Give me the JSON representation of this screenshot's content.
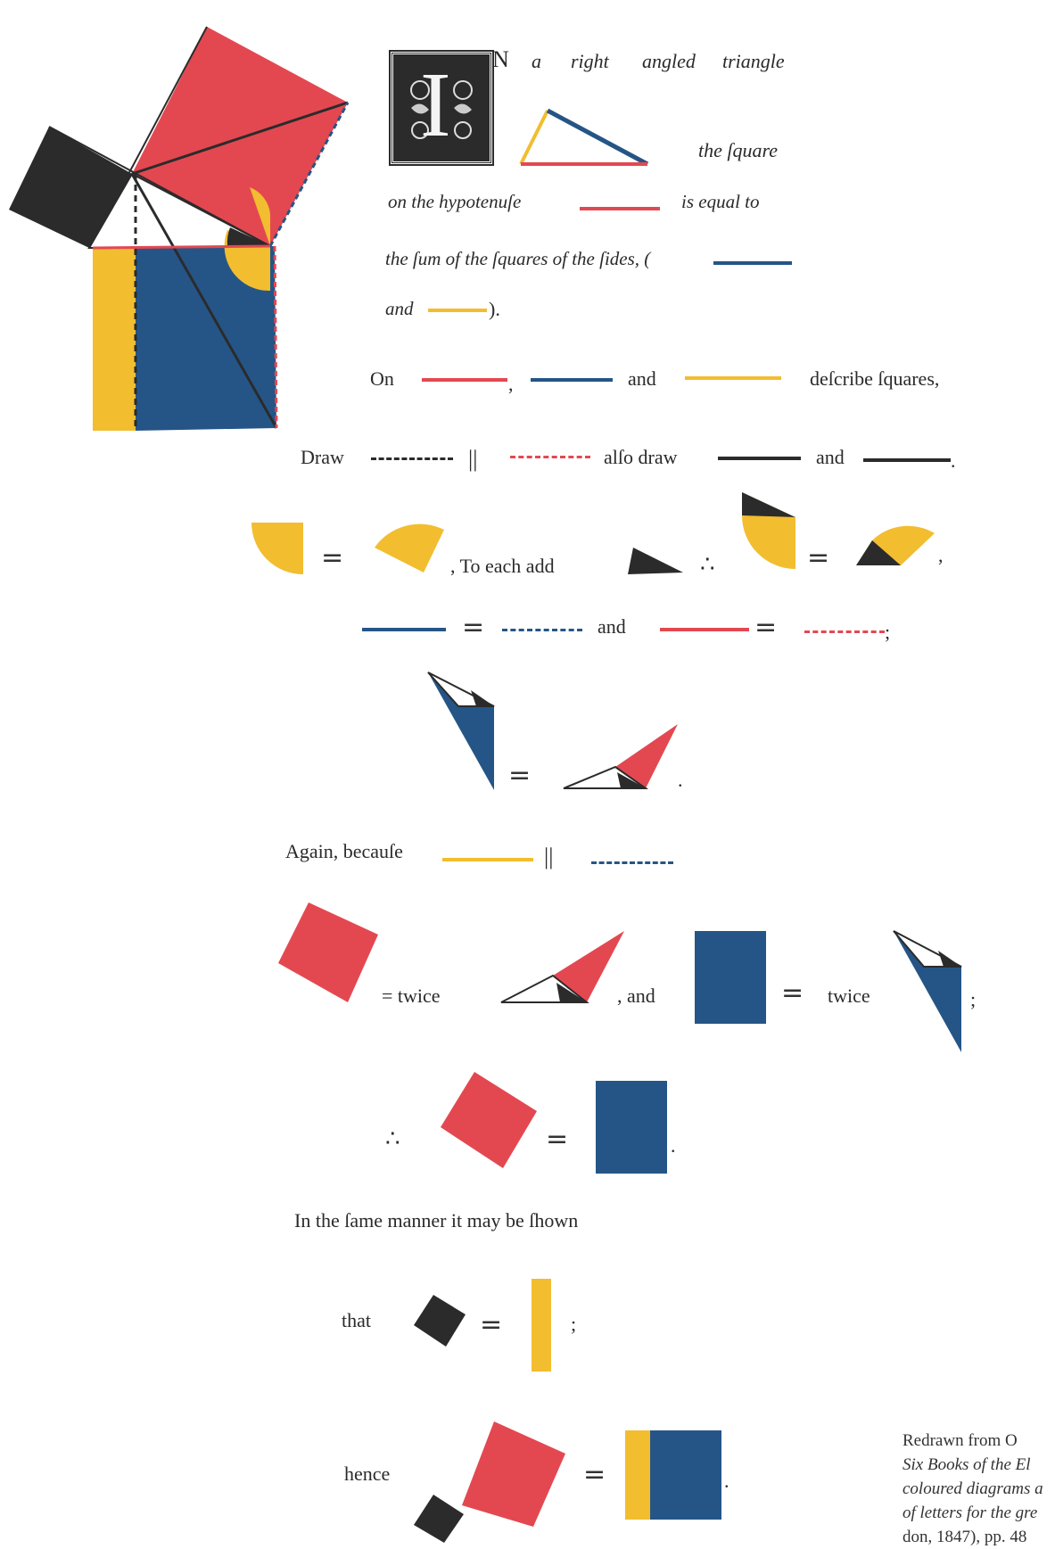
{
  "initial": {
    "letter": "I",
    "rest": "N"
  },
  "line1": {
    "w1": "a",
    "w2": "right",
    "w3": "angled",
    "w4": "triangle"
  },
  "line2": {
    "text": "the ſquare"
  },
  "line3": {
    "a": "on the hypotenuſe",
    "b": "is equal to"
  },
  "line4": {
    "text": "the ſum of the ſquares of the ſides, ("
  },
  "line5": {
    "text": "and",
    "close": ")."
  },
  "on_line": {
    "on": "On",
    "comma": ",",
    "and": "and",
    "describe": "deſcribe ſquares,"
  },
  "draw_line": {
    "draw": "Draw",
    "parallel": "||",
    "also": "alſo draw",
    "and": "and",
    "period": "."
  },
  "add_line": {
    "eq": "=",
    "to_each_add": ", To each add",
    "therefore": "∴",
    "comma": ","
  },
  "lines_eq": {
    "eq": "=",
    "and": "and",
    "semi": ";"
  },
  "tri_eq": {
    "eq": "=",
    "period": "."
  },
  "again": {
    "text": "Again, becauſe",
    "parallel": "||"
  },
  "twice_line": {
    "eq_twice": "= twice",
    "comma_and": ",   and",
    "eq": "=",
    "twice": "twice",
    "semi": ";"
  },
  "therefore_line": {
    "therefore": "∴",
    "eq": "=",
    "period": "."
  },
  "same_manner": {
    "text": "In the ſame manner it may be ſhown"
  },
  "that_line": {
    "that": "that",
    "eq": "=",
    "semi": ";"
  },
  "hence_line": {
    "hence": "hence",
    "eq": "=",
    "period": "."
  },
  "caption": {
    "line1": "Redrawn from O",
    "line2": "Six Books of the El",
    "line3": "coloured diagrams a",
    "line4": "of letters for the gre",
    "line5": "don, 1847), pp. 48"
  },
  "colors": {
    "red": "#e34851",
    "blue": "#255587",
    "yellow": "#f2bd2f",
    "black": "#2b2b2b"
  }
}
